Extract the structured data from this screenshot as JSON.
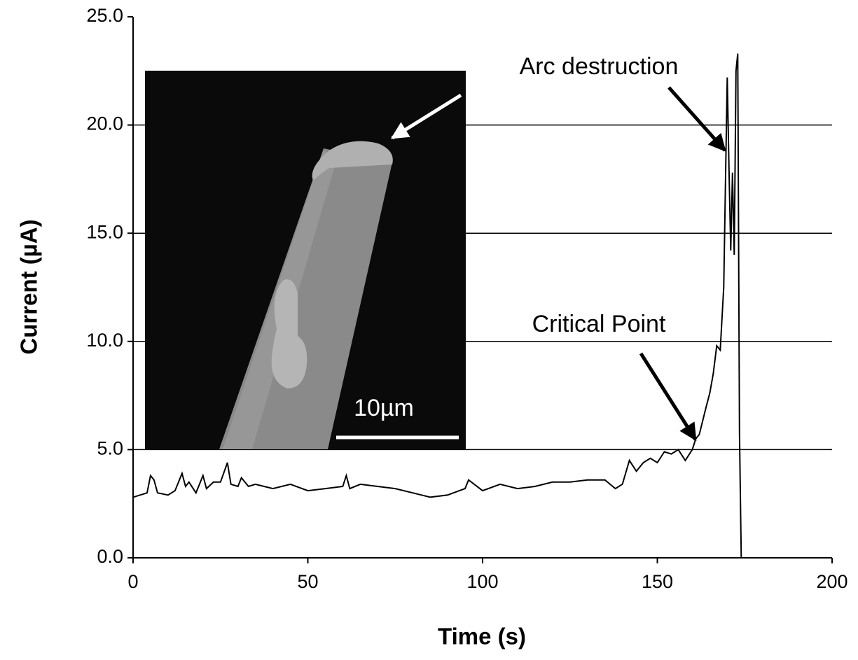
{
  "chart_data": {
    "type": "line",
    "xlabel": "Time (s)",
    "ylabel": "Current (µA)",
    "annotations": [
      "Arc destruction",
      "Critical Point"
    ],
    "inset_scale_label": "10µm",
    "x": [
      0,
      2,
      4,
      5,
      6,
      7,
      10,
      12,
      14,
      15,
      16,
      18,
      20,
      21,
      23,
      25,
      27,
      28,
      30,
      31,
      33,
      35,
      40,
      45,
      50,
      55,
      60,
      61,
      62,
      65,
      70,
      75,
      80,
      85,
      90,
      95,
      96,
      100,
      105,
      110,
      115,
      120,
      125,
      130,
      135,
      138,
      140,
      142,
      144,
      146,
      148,
      150,
      152,
      154,
      156,
      158,
      160,
      161,
      162,
      164,
      165,
      166,
      167,
      168,
      169,
      170,
      170.5,
      171,
      171.5,
      172,
      172.5,
      173,
      173.5,
      174,
      182
    ],
    "values": [
      2.8,
      2.9,
      3.0,
      3.8,
      3.6,
      3.0,
      2.9,
      3.1,
      3.9,
      3.3,
      3.5,
      3.0,
      3.8,
      3.2,
      3.5,
      3.5,
      4.4,
      3.4,
      3.3,
      3.7,
      3.3,
      3.4,
      3.2,
      3.4,
      3.1,
      3.2,
      3.3,
      3.8,
      3.2,
      3.4,
      3.3,
      3.2,
      3.0,
      2.8,
      2.9,
      3.2,
      3.6,
      3.1,
      3.4,
      3.2,
      3.3,
      3.5,
      3.5,
      3.6,
      3.6,
      3.2,
      3.4,
      4.5,
      4.0,
      4.4,
      4.6,
      4.4,
      4.9,
      4.8,
      5.0,
      4.5,
      5.0,
      5.5,
      5.7,
      7.0,
      7.6,
      8.5,
      9.8,
      9.6,
      12.5,
      22.2,
      18.0,
      14.2,
      17.8,
      14.0,
      22.5,
      23.3,
      5.8,
      0.0,
      0.0
    ],
    "color": "#000000",
    "xlim": [
      0,
      200
    ],
    "xticks": [
      0,
      50,
      100,
      150,
      200
    ],
    "ylim": [
      0,
      25
    ],
    "yticks": [
      {
        "value": 0,
        "label": "0.0"
      },
      {
        "value": 5,
        "label": "5.0"
      },
      {
        "value": 10,
        "label": "10.0"
      },
      {
        "value": 15,
        "label": "15.0"
      },
      {
        "value": 20,
        "label": "20.0"
      },
      {
        "value": 25,
        "label": "25.0"
      }
    ],
    "grid": true
  }
}
